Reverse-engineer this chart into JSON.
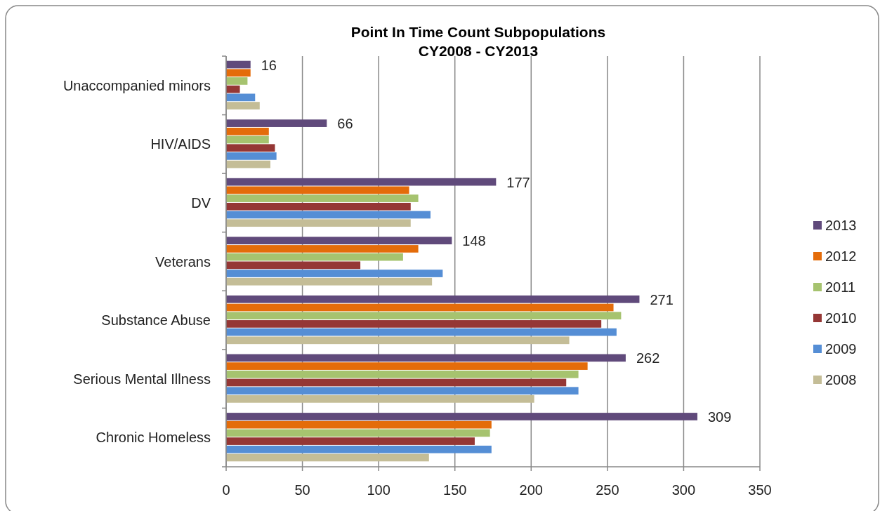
{
  "chart_data": {
    "type": "bar",
    "orientation": "horizontal",
    "title": "Point In Time Count Subpopulations",
    "subtitle": "CY2008 - CY2013",
    "categories": [
      "Unaccompanied minors",
      "HIV/AIDS",
      "DV",
      "Veterans",
      "Substance Abuse",
      "Serious Mental Illness",
      "Chronic Homeless"
    ],
    "series": [
      {
        "name": "2013",
        "color": "#604a7b",
        "values": [
          16,
          66,
          177,
          148,
          271,
          262,
          309
        ],
        "value_labels": [
          "16",
          "66",
          "177",
          "148",
          "271",
          "262",
          "309"
        ]
      },
      {
        "name": "2012",
        "color": "#e46c0a",
        "values": [
          16,
          28,
          120,
          126,
          254,
          237,
          174
        ]
      },
      {
        "name": "2011",
        "color": "#a6c36f",
        "values": [
          14,
          28,
          126,
          116,
          259,
          231,
          173
        ]
      },
      {
        "name": "2010",
        "color": "#953735",
        "values": [
          9,
          32,
          121,
          88,
          246,
          223,
          163
        ]
      },
      {
        "name": "2009",
        "color": "#558ed5",
        "values": [
          19,
          33,
          134,
          142,
          256,
          231,
          174
        ]
      },
      {
        "name": "2008",
        "color": "#c4bd97",
        "values": [
          22,
          29,
          121,
          135,
          225,
          202,
          133
        ]
      }
    ],
    "xlim": [
      0,
      350
    ],
    "xticks": [
      0,
      50,
      100,
      150,
      200,
      250,
      300,
      350
    ],
    "grid": "x",
    "legend": "right"
  }
}
